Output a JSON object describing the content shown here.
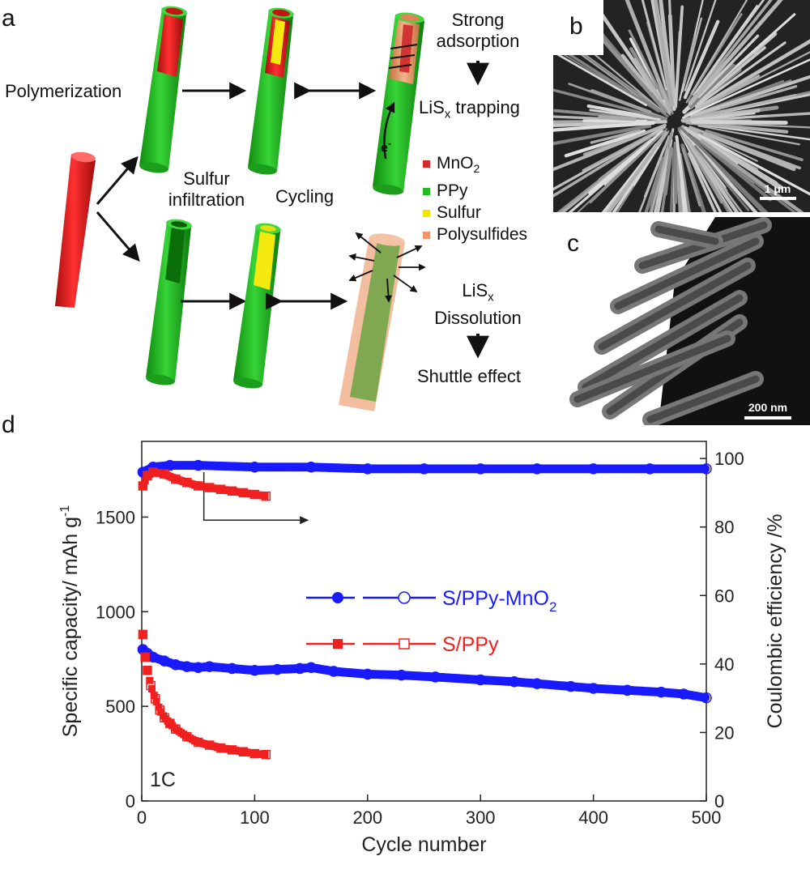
{
  "panel_labels": {
    "a": "a",
    "b": "b",
    "c": "c",
    "d": "d"
  },
  "schematic": {
    "polymerization": "Polymerization",
    "sulfur_infiltration_line1": "Sulfur",
    "sulfur_infiltration_line2": "infiltration",
    "cycling": "Cycling",
    "strong_line1": "Strong",
    "strong_line2": "adsorption",
    "lisx_trapping": "LiS",
    "lisx_trapping_sub": "x",
    "lisx_trapping_tail": " trapping",
    "lisx_dissolution_head": "LiS",
    "lisx_dissolution_sub": "x",
    "dissolution": "Dissolution",
    "shuttle_effect": "Shuttle  effect",
    "electron": "e",
    "electron_sup": "-",
    "legend": [
      {
        "label": "MnO",
        "sub": "2",
        "color": "#d42a2a"
      },
      {
        "label": "PPy",
        "sub": "",
        "color": "#22bb22"
      },
      {
        "label": "Sulfur",
        "sub": "",
        "color": "#f2e600"
      },
      {
        "label": "Polysulfides",
        "sub": "",
        "color": "#f0956a"
      }
    ]
  },
  "micrographs": {
    "b_scale": "1 μm",
    "c_scale": "200 nm"
  },
  "colors": {
    "blue": "#1a1aff",
    "red": "#f02020",
    "tube_green": "#2ec22e",
    "tube_red": "#e01a1a"
  },
  "chart_data": {
    "type": "scatter",
    "xlabel": "Cycle number",
    "ylabel": "Specific capacity/ mAh g",
    "ylabel_sup": "-1",
    "y2label": "Coulombic efficiency /%",
    "xlim": [
      0,
      500
    ],
    "ylim": [
      0,
      1900
    ],
    "y2lim": [
      0,
      105
    ],
    "x_ticks": [
      0,
      100,
      200,
      300,
      400,
      500
    ],
    "y_ticks": [
      0,
      500,
      1000,
      1500
    ],
    "y2_ticks": [
      0,
      20,
      40,
      60,
      80,
      100
    ],
    "annotation": "1C",
    "series": [
      {
        "name": "S/PPy-MnO2",
        "name_main": "S/PPy-MnO",
        "name_sub": "2",
        "kind": "capacity",
        "color": "#1a1aff",
        "x": [
          1,
          5,
          10,
          20,
          30,
          40,
          50,
          60,
          80,
          100,
          120,
          140,
          150,
          170,
          200,
          230,
          260,
          300,
          330,
          350,
          380,
          400,
          430,
          460,
          480,
          500
        ],
        "y": [
          800,
          780,
          760,
          740,
          720,
          710,
          705,
          710,
          700,
          690,
          695,
          700,
          705,
          685,
          670,
          665,
          655,
          640,
          630,
          620,
          605,
          595,
          585,
          575,
          565,
          545
        ]
      },
      {
        "name": "S/PPy",
        "name_main": "S/PPy",
        "name_sub": "",
        "kind": "capacity",
        "color": "#f02020",
        "x": [
          1,
          3,
          5,
          8,
          12,
          16,
          20,
          25,
          30,
          40,
          50,
          60,
          70,
          80,
          90,
          100,
          110
        ],
        "y": [
          880,
          760,
          690,
          610,
          540,
          480,
          440,
          410,
          380,
          340,
          310,
          295,
          280,
          270,
          260,
          250,
          245
        ]
      },
      {
        "name": "S/PPy-MnO2 CE",
        "kind": "efficiency",
        "color": "#1a1aff",
        "x": [
          1,
          10,
          25,
          50,
          100,
          150,
          200,
          250,
          300,
          350,
          400,
          450,
          500
        ],
        "y": [
          96,
          97.5,
          98,
          98,
          97.5,
          97.5,
          97,
          97,
          97,
          97,
          97,
          97,
          97
        ]
      },
      {
        "name": "S/PPy CE",
        "kind": "efficiency",
        "color": "#f02020",
        "x": [
          1,
          5,
          10,
          20,
          30,
          40,
          50,
          60,
          70,
          80,
          90,
          100,
          110
        ],
        "y": [
          92,
          95,
          96,
          95.5,
          94,
          93,
          92,
          91.5,
          91,
          90.5,
          90,
          89.5,
          89
        ]
      }
    ]
  }
}
